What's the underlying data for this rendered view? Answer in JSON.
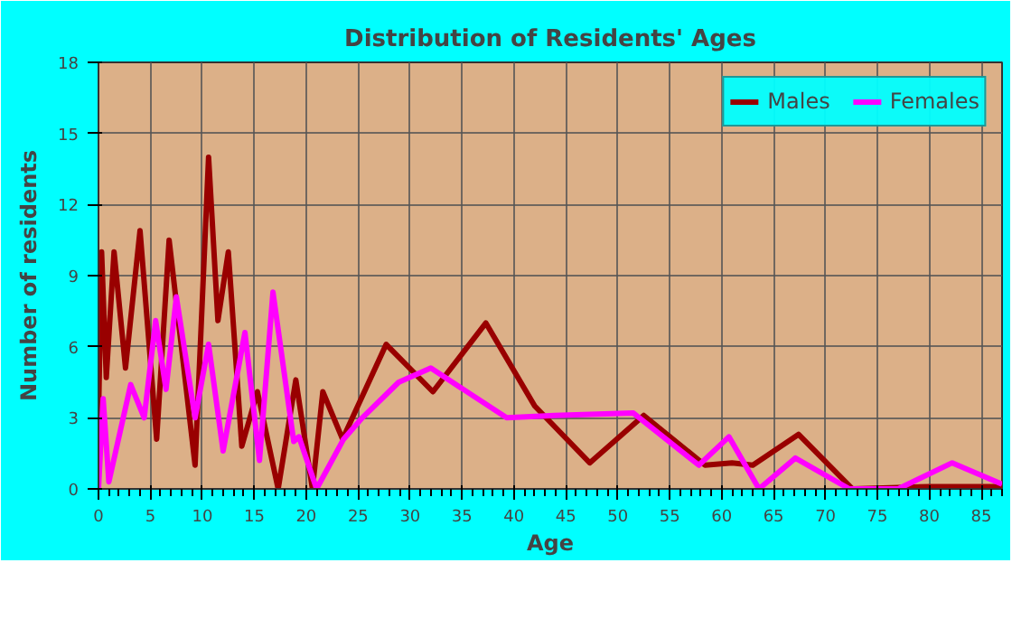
{
  "chart_data": {
    "type": "line",
    "title": "Distribution of Residents' Ages",
    "xlabel": "Age",
    "ylabel": "Number of residents",
    "xlim": [
      0,
      87
    ],
    "xticks": [
      0,
      5,
      10,
      15,
      20,
      25,
      30,
      35,
      40,
      45,
      50,
      55,
      60,
      65,
      70,
      75,
      80,
      85
    ],
    "ylim": [
      0,
      18
    ],
    "yticks": [
      0,
      3,
      6,
      9,
      12,
      15,
      18
    ],
    "grid": true,
    "legend": "top right",
    "marker": "none",
    "line_style": "solid",
    "series": [
      {
        "name": "Males",
        "color": "#990000",
        "x": [
          0,
          0.3,
          0.75,
          1.5,
          2.6,
          4,
          5.6,
          6.8,
          9.3,
          10.6,
          11.5,
          12.5,
          13.8,
          15.3,
          17.3,
          19,
          20.6,
          21.6,
          23.5,
          27.7,
          32.2,
          37.3,
          42,
          47.3,
          52.5,
          58.4,
          61,
          63,
          67.4,
          72.6,
          80,
          87
        ],
        "values": [
          3,
          10,
          4.7,
          10,
          5.1,
          10.9,
          2.1,
          10.5,
          1,
          14,
          7.1,
          10,
          1.8,
          4.1,
          0,
          4.6,
          0,
          4.1,
          2.1,
          6.1,
          4.1,
          7,
          3.5,
          1.1,
          3.1,
          1,
          1.1,
          1,
          2.3,
          0,
          0.1,
          0.1
        ]
      },
      {
        "name": "Females",
        "color": "#ff00ff",
        "x": [
          0,
          0.45,
          1,
          3.1,
          4.4,
          5.5,
          6.5,
          7.5,
          9.3,
          10.6,
          12,
          14.1,
          15.5,
          16.8,
          18.8,
          19.3,
          21,
          23.6,
          25.4,
          28.9,
          32,
          39.3,
          43.9,
          51.5,
          57.8,
          60.7,
          63.6,
          67.1,
          72.3,
          77,
          82.2,
          87
        ],
        "values": [
          0,
          3.8,
          0.3,
          4.4,
          3,
          7.1,
          4.2,
          8.1,
          3,
          6.1,
          1.6,
          6.6,
          1.2,
          8.3,
          2,
          2.2,
          0,
          2.1,
          3,
          4.5,
          5.1,
          3,
          3.1,
          3.2,
          1,
          2.2,
          0,
          1.3,
          0,
          0,
          1.1,
          0.2
        ]
      }
    ]
  }
}
